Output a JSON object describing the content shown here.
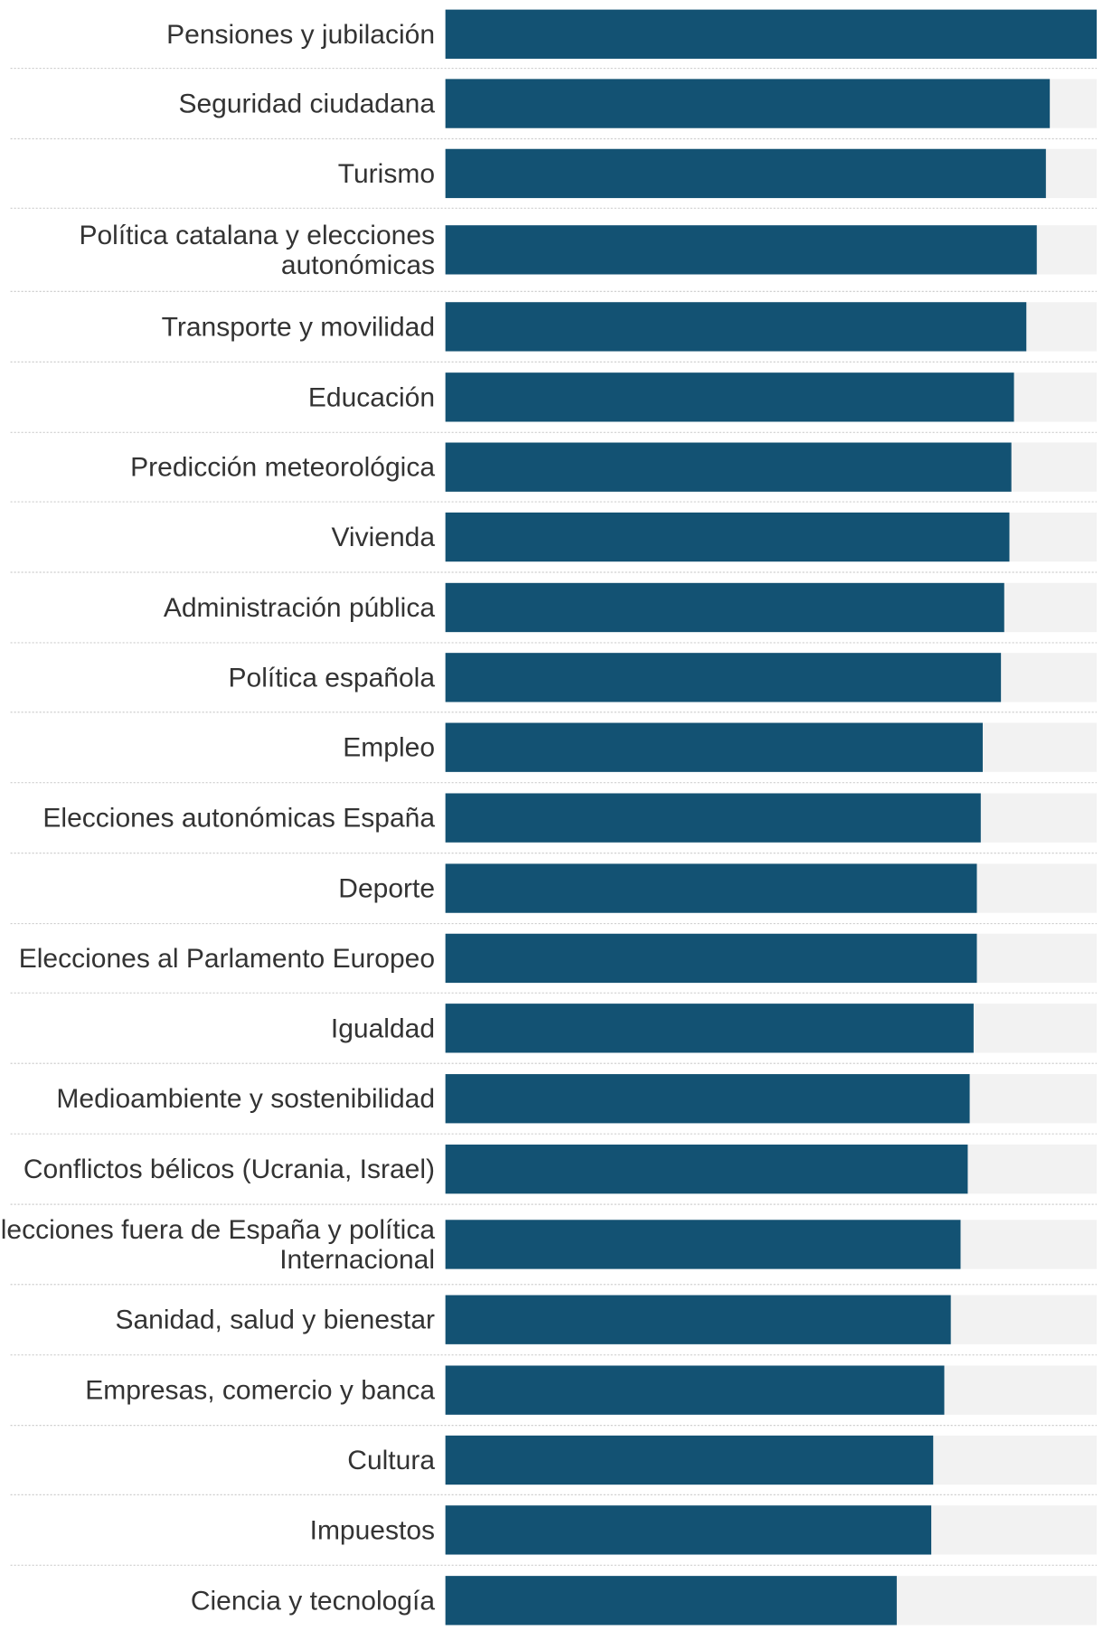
{
  "chart_data": {
    "type": "bar",
    "orientation": "horizontal",
    "title": "",
    "xlabel": "",
    "ylabel": "",
    "xlim": [
      0,
      100
    ],
    "grid": false,
    "value_labels_shown": false,
    "colors": {
      "bar": "#135273",
      "track": "#f2f2f2",
      "separator": "#cccccc",
      "label": "#333333"
    },
    "categories": [
      [
        "Pensiones y jubilación"
      ],
      [
        "Seguridad ciudadana"
      ],
      [
        "Turismo"
      ],
      [
        "Política catalana y elecciones",
        "autonómicas"
      ],
      [
        "Transporte y movilidad"
      ],
      [
        "Educación"
      ],
      [
        "Predicción meteorológica"
      ],
      [
        "Vivienda"
      ],
      [
        "Administración pública"
      ],
      [
        "Política española"
      ],
      [
        "Empleo"
      ],
      [
        "Elecciones autonómicas España"
      ],
      [
        "Deporte"
      ],
      [
        "Elecciones al Parlamento Europeo"
      ],
      [
        "Igualdad"
      ],
      [
        "Medioambiente y sostenibilidad"
      ],
      [
        "Conflictos bélicos (Ucrania, Israel)"
      ],
      [
        "Elecciones fuera de España y política",
        "Internacional"
      ],
      [
        "Sanidad, salud y bienestar"
      ],
      [
        "Empresas, comercio y banca"
      ],
      [
        "Cultura"
      ],
      [
        "Impuestos"
      ],
      [
        "Ciencia y tecnología"
      ]
    ],
    "values": [
      100,
      92.8,
      92.2,
      90.8,
      89.2,
      87.3,
      86.9,
      86.6,
      85.8,
      85.3,
      82.5,
      82.2,
      81.6,
      81.6,
      81.1,
      80.5,
      80.2,
      79.1,
      77.6,
      76.6,
      74.9,
      74.6,
      69.3
    ]
  }
}
